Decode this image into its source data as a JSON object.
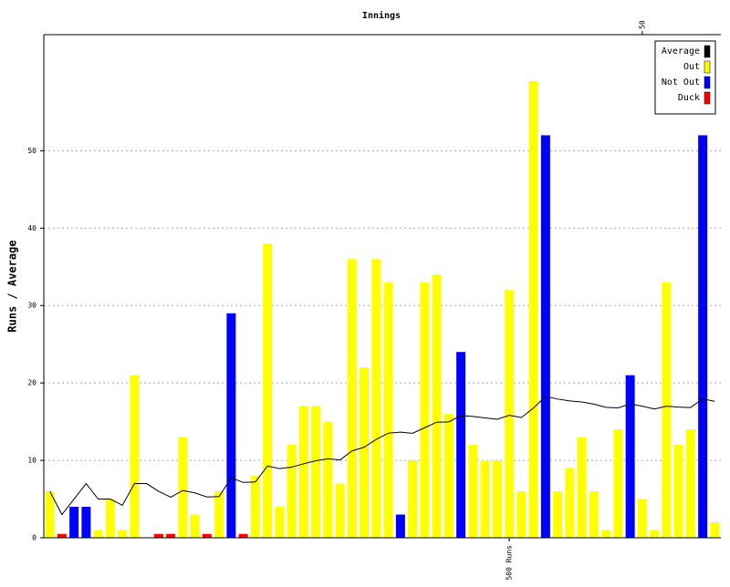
{
  "chart_data": {
    "type": "bar",
    "title": "Innings",
    "y_label": "Runs / Average",
    "categories": [
      null,
      null,
      null,
      null,
      null,
      null,
      null,
      null,
      null,
      null,
      null,
      null,
      null,
      null,
      null,
      null,
      null,
      null,
      null,
      null,
      null,
      null,
      null,
      null,
      null,
      null,
      null,
      null,
      null,
      null,
      null,
      null,
      null,
      null,
      null,
      null,
      null,
      null,
      null,
      null,
      null,
      null,
      null,
      null,
      null,
      null,
      null,
      null,
      null,
      null,
      null,
      null,
      null,
      null,
      null,
      null
    ],
    "series": [
      {
        "name": "Average",
        "color": "#000000",
        "type": "line",
        "values": [
          6,
          3,
          5,
          7,
          5,
          5,
          4.2,
          7,
          7,
          6,
          5.25,
          6.11,
          5.8,
          5.27,
          5.33,
          7.75,
          7.15,
          7.21,
          9.27,
          8.94,
          9.12,
          9.56,
          9.95,
          10.2,
          10.05,
          11.23,
          11.7,
          12.71,
          13.52,
          13.64,
          13.5,
          14.22,
          14.93,
          14.97,
          15.79,
          15.67,
          15.48,
          15.31,
          15.82,
          15.53,
          16.77,
          18.26,
          17.92,
          17.68,
          17.55,
          17.26,
          16.85,
          16.78,
          17.29,
          17,
          16.63,
          17,
          16.89,
          16.83,
          17.96,
          17.62
        ]
      },
      {
        "name": "Out",
        "color": "#ffff00",
        "values": [
          6,
          null,
          null,
          null,
          1,
          5,
          1,
          21,
          null,
          null,
          null,
          13,
          3,
          null,
          6,
          null,
          null,
          8,
          38,
          4,
          12,
          17,
          17,
          15,
          7,
          36,
          22,
          36,
          33,
          null,
          10,
          33,
          34,
          16,
          null,
          12,
          10,
          10,
          32,
          6,
          59,
          null,
          6,
          9,
          13,
          6,
          1,
          14,
          null,
          5,
          1,
          33,
          12,
          14,
          null,
          2
        ]
      },
      {
        "name": "Not Out",
        "color": "#0000ff",
        "values": [
          null,
          null,
          4,
          4,
          null,
          null,
          null,
          null,
          0,
          null,
          null,
          null,
          null,
          null,
          null,
          29,
          null,
          null,
          null,
          null,
          null,
          null,
          null,
          null,
          null,
          null,
          null,
          null,
          null,
          3,
          null,
          null,
          null,
          null,
          24,
          null,
          null,
          null,
          null,
          null,
          null,
          52,
          null,
          null,
          null,
          null,
          null,
          null,
          21,
          null,
          null,
          null,
          null,
          null,
          52,
          null
        ]
      },
      {
        "name": "Duck",
        "color": "#ff0000",
        "values": [
          null,
          0.5,
          null,
          null,
          null,
          null,
          null,
          null,
          null,
          0.5,
          0.5,
          null,
          null,
          0.5,
          null,
          null,
          0.5,
          null,
          null,
          null,
          null,
          null,
          null,
          null,
          null,
          null,
          null,
          null,
          null,
          null,
          null,
          null,
          null,
          null,
          null,
          null,
          null,
          null,
          null,
          null,
          null,
          null,
          null,
          null,
          null,
          null,
          null,
          null,
          null,
          null,
          null,
          null,
          null,
          null,
          null,
          null
        ]
      }
    ],
    "annotations": [
      {
        "label": "500 Runs",
        "x": 38,
        "edge": "bottom"
      },
      {
        "label": "50",
        "x": 49,
        "edge": "top"
      }
    ],
    "ylim": [
      0,
      65
    ],
    "yticks": [
      0,
      10,
      20,
      30,
      40,
      50
    ],
    "grid": true,
    "legend": "top-right"
  }
}
